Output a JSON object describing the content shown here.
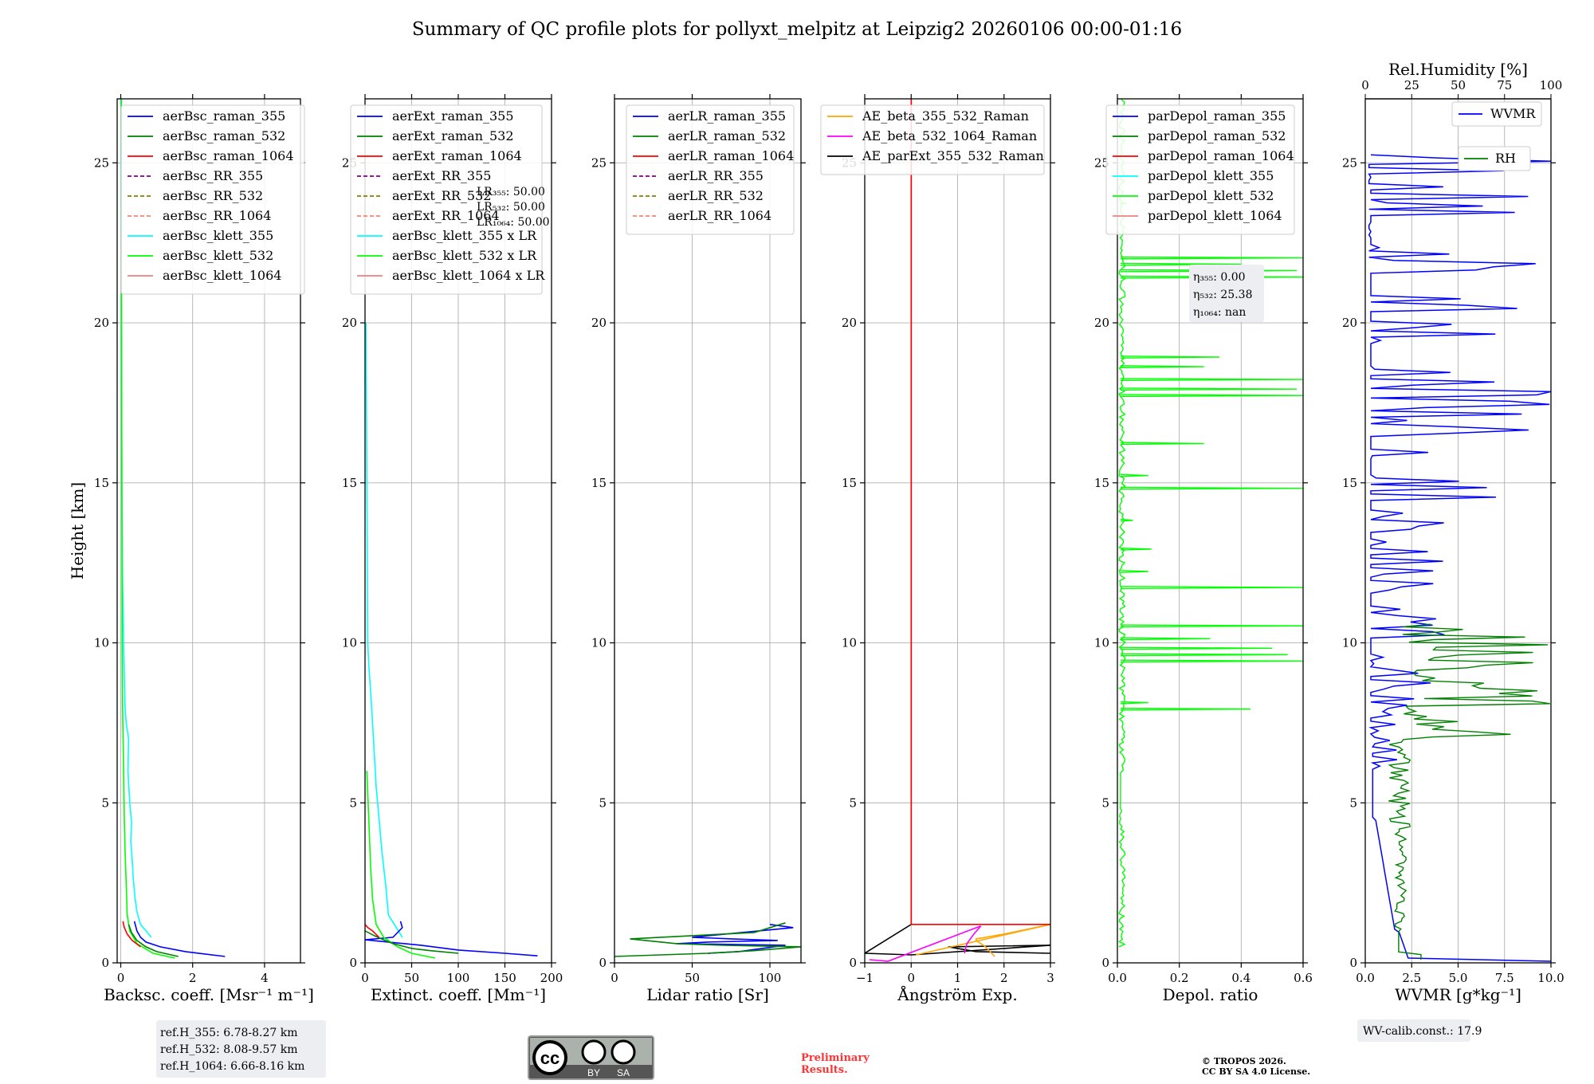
{
  "figure_title": "Summary of QC profile plots for pollyxt_melpitz at Leipzig2 20260106 00:00-01:16",
  "colors": {
    "c355": "#0000ff",
    "c532": "#008000",
    "c1064": "#ff0000",
    "rr355": "#800080",
    "rr532": "#808000",
    "rr1064": "#fa8072",
    "k355": "#00ffff",
    "k532": "#00ff00",
    "k1064": "#f08080",
    "orange": "#ffa500",
    "magenta": "#ff00ff",
    "black": "#000000"
  },
  "chart_data": [
    {
      "id": "bsc",
      "type": "line",
      "xlabel": "Backsc. coeff. [Msr$^{-1}$ m$^{-1}$]",
      "xlabel_text": "Backsc. coeff. [Msr⁻¹ m⁻¹]",
      "ylabel": "Height [km]",
      "xlim": [
        -0.1,
        5
      ],
      "ylim": [
        0,
        27
      ],
      "xticks": [
        0,
        2,
        4
      ],
      "yticks": [
        0,
        5,
        10,
        15,
        20,
        25
      ],
      "legend": [
        {
          "label": "aerBsc_raman_355",
          "color": "c355",
          "dash": false
        },
        {
          "label": "aerBsc_raman_532",
          "color": "c532",
          "dash": false
        },
        {
          "label": "aerBsc_raman_1064",
          "color": "c1064",
          "dash": false
        },
        {
          "label": "aerBsc_RR_355",
          "color": "rr355",
          "dash": true
        },
        {
          "label": "aerBsc_RR_532",
          "color": "rr532",
          "dash": true
        },
        {
          "label": "aerBsc_RR_1064",
          "color": "rr1064",
          "dash": true
        },
        {
          "label": "aerBsc_klett_355",
          "color": "k355",
          "dash": false
        },
        {
          "label": "aerBsc_klett_532",
          "color": "k532",
          "dash": false
        },
        {
          "label": "aerBsc_klett_1064",
          "color": "k1064",
          "dash": false
        }
      ],
      "series": [
        {
          "name": "aerBsc_klett_355",
          "color": "k355",
          "x": [
            0.85,
            0.55,
            0.45,
            0.4,
            0.35,
            0.32,
            0.28,
            0.3,
            0.25,
            0.2,
            0.22,
            0.15,
            0.12,
            0.1,
            0.08,
            0.05,
            0.03,
            0.02,
            0.01,
            0.02
          ],
          "y": [
            0.8,
            1.2,
            1.6,
            2,
            2.6,
            3.2,
            3.8,
            4.4,
            5,
            6,
            7,
            7.5,
            8,
            9,
            10,
            12,
            15,
            20,
            25,
            27
          ]
        },
        {
          "name": "aerBsc_raman_355",
          "color": "c355",
          "x": [
            2.9,
            1.8,
            1.1,
            0.7,
            0.55,
            0.45,
            0.38
          ],
          "y": [
            0.2,
            0.35,
            0.5,
            0.65,
            0.8,
            1.0,
            1.3
          ]
        },
        {
          "name": "aerBsc_klett_532",
          "color": "k532",
          "x": [
            1.5,
            0.9,
            0.45,
            0.25,
            0.18,
            0.15,
            0.12,
            0.1,
            0.08,
            0.05,
            0.04,
            0.03,
            0.02,
            0.01
          ],
          "y": [
            0.15,
            0.3,
            0.6,
            1.0,
            1.5,
            2.5,
            3.5,
            4.5,
            6,
            8,
            10,
            15,
            20,
            27
          ]
        },
        {
          "name": "aerBsc_raman_532",
          "color": "c532",
          "x": [
            1.6,
            1.0,
            0.7,
            0.45,
            0.3,
            0.22
          ],
          "y": [
            0.2,
            0.35,
            0.5,
            0.7,
            0.95,
            1.2
          ]
        },
        {
          "name": "aerBsc_raman_1064",
          "color": "c1064",
          "x": [
            0.55,
            0.32,
            0.18,
            0.1,
            0.06
          ],
          "y": [
            0.5,
            0.7,
            0.9,
            1.1,
            1.3
          ]
        }
      ],
      "annotation": [
        "ref.H_355: 6.78-8.27 km",
        "ref.H_532: 8.08-9.57 km",
        "ref.H_1064: 6.66-8.16 km"
      ]
    },
    {
      "id": "ext",
      "type": "line",
      "xlabel_text": "Extinct. coeff. [Mm⁻¹]",
      "xlim": [
        0,
        200
      ],
      "ylim": [
        0,
        27
      ],
      "xticks": [
        0,
        50,
        100,
        150,
        200
      ],
      "yticks": [
        0,
        5,
        10,
        15,
        20,
        25
      ],
      "legend": [
        {
          "label": "aerExt_raman_355",
          "color": "c355",
          "dash": false
        },
        {
          "label": "aerExt_raman_532",
          "color": "c532",
          "dash": false
        },
        {
          "label": "aerExt_raman_1064",
          "color": "c1064",
          "dash": false
        },
        {
          "label": "aerExt_RR_355",
          "color": "rr355",
          "dash": true
        },
        {
          "label": "aerExt_RR_532",
          "color": "rr532",
          "dash": true
        },
        {
          "label": "aerExt_RR_1064",
          "color": "rr1064",
          "dash": true
        },
        {
          "label": "aerBsc_klett_355 x LR",
          "color": "k355",
          "dash": false
        },
        {
          "label": "aerBsc_klett_532 x LR",
          "color": "k532",
          "dash": false
        },
        {
          "label": "aerBsc_klett_1064 x LR",
          "color": "k1064",
          "dash": false
        }
      ],
      "lr_text": [
        "LR₃₅₅: 50.00",
        "LR₅₃₂: 50.00",
        "LR₁₀₆₄: 50.00"
      ],
      "series": [
        {
          "name": "aerBsc_klett_355 x LR",
          "color": "k355",
          "x": [
            40,
            25,
            22,
            18,
            15,
            12,
            10,
            8,
            6,
            4,
            3,
            2,
            1
          ],
          "y": [
            0.8,
            1.5,
            2.5,
            3.5,
            4.5,
            5.5,
            6.5,
            7.5,
            8.5,
            9.3,
            10,
            15,
            20
          ]
        },
        {
          "name": "aerExt_raman_355",
          "color": "c355",
          "x": [
            185,
            150,
            100,
            60,
            25,
            0,
            30,
            40,
            38
          ],
          "y": [
            0.22,
            0.3,
            0.4,
            0.55,
            0.65,
            0.72,
            0.8,
            1.1,
            1.3
          ]
        },
        {
          "name": "aerBsc_klett_532 x LR",
          "color": "k532",
          "x": [
            75,
            50,
            35,
            20,
            12,
            8,
            6,
            4,
            2
          ],
          "y": [
            0.15,
            0.3,
            0.5,
            0.8,
            1.2,
            2,
            3,
            4.5,
            6
          ]
        },
        {
          "name": "aerExt_raman_532",
          "color": "c532",
          "x": [
            100,
            70,
            50,
            30,
            20,
            10,
            0
          ],
          "y": [
            0.3,
            0.38,
            0.45,
            0.6,
            0.72,
            0.85,
            1.0
          ]
        },
        {
          "name": "aerExt_raman_1064",
          "color": "c1064",
          "x": [
            15,
            8,
            3,
            0
          ],
          "y": [
            0.8,
            1.0,
            1.1,
            1.2
          ]
        }
      ]
    },
    {
      "id": "lr",
      "type": "line",
      "xlabel_text": "Lidar ratio [Sr]",
      "xlim": [
        0,
        120
      ],
      "ylim": [
        0,
        27
      ],
      "xticks": [
        0,
        50,
        100
      ],
      "yticks": [
        0,
        5,
        10,
        15,
        20,
        25
      ],
      "legend": [
        {
          "label": "aerLR_raman_355",
          "color": "c355",
          "dash": false
        },
        {
          "label": "aerLR_raman_532",
          "color": "c532",
          "dash": false
        },
        {
          "label": "aerLR_raman_1064",
          "color": "c1064",
          "dash": false
        },
        {
          "label": "aerLR_RR_355",
          "color": "rr355",
          "dash": true
        },
        {
          "label": "aerLR_RR_532",
          "color": "rr532",
          "dash": true
        },
        {
          "label": "aerLR_RR_1064",
          "color": "rr1064",
          "dash": true
        }
      ],
      "series": [
        {
          "name": "aerLR_raman_355",
          "color": "c355",
          "x": [
            60,
            80,
            110,
            40,
            60,
            105,
            75,
            50,
            115,
            100
          ],
          "y": [
            0.3,
            0.35,
            0.55,
            0.6,
            0.65,
            0.7,
            0.75,
            0.8,
            1.1,
            1.2
          ]
        },
        {
          "name": "aerLR_raman_532",
          "color": "c532",
          "x": [
            0,
            60,
            90,
            120,
            70,
            40,
            10,
            50,
            90,
            110
          ],
          "y": [
            0.2,
            0.3,
            0.38,
            0.5,
            0.55,
            0.6,
            0.75,
            0.85,
            0.95,
            1.25
          ]
        }
      ]
    },
    {
      "id": "ae",
      "type": "line",
      "xlabel_text": "Ångström Exp.",
      "xlim": [
        -1,
        3
      ],
      "ylim": [
        0,
        27
      ],
      "xticks": [
        -1,
        0,
        1,
        2,
        3
      ],
      "yticks": [
        0,
        5,
        10,
        15,
        20,
        25
      ],
      "legend": [
        {
          "label": "AE_beta_355_532_Raman",
          "color": "orange",
          "dash": false
        },
        {
          "label": "AE_beta_532_1064_Raman",
          "color": "magenta",
          "dash": false
        },
        {
          "label": "AE_parExt_355_532_Raman",
          "color": "black",
          "dash": false
        }
      ],
      "series": [
        {
          "name": "AE_parExt_355_532_Raman",
          "color": "black",
          "x": [
            3,
            1.4,
            0.8,
            3,
            0,
            -1,
            0,
            0
          ],
          "y": [
            0.3,
            0.35,
            0.5,
            0.55,
            0.25,
            0.3,
            1.2,
            27
          ]
        },
        {
          "name": "AE_beta_355_532_Raman",
          "color": "orange",
          "x": [
            1.8,
            1.6,
            1.4,
            1.4,
            2,
            3,
            0.1
          ],
          "y": [
            0.2,
            0.5,
            0.7,
            0.75,
            0.9,
            1.2,
            0.25
          ]
        },
        {
          "name": "AE_beta_532_1064_Raman",
          "color": "magenta",
          "x": [
            1.15,
            1.2,
            1.35,
            1.5,
            -0.5,
            -0.9
          ],
          "y": [
            0.3,
            0.6,
            0.9,
            1.15,
            0.05,
            0.1
          ]
        },
        {
          "name": "AE_ref",
          "color": "c1064",
          "x": [
            0,
            0,
            3
          ],
          "y": [
            27,
            1.2,
            1.2
          ]
        }
      ]
    },
    {
      "id": "dep",
      "type": "line",
      "xlabel_text": "Depol. ratio",
      "xlim": [
        0,
        0.6
      ],
      "ylim": [
        0,
        27
      ],
      "xticks": [
        0.0,
        0.2,
        0.4,
        0.6
      ],
      "yticks": [
        0,
        5,
        10,
        15,
        20,
        25
      ],
      "legend": [
        {
          "label": "parDepol_raman_355",
          "color": "c355",
          "dash": false
        },
        {
          "label": "parDepol_raman_532",
          "color": "c532",
          "dash": false
        },
        {
          "label": "parDepol_raman_1064",
          "color": "c1064",
          "dash": false
        },
        {
          "label": "parDepol_klett_355",
          "color": "k355",
          "dash": false
        },
        {
          "label": "parDepol_klett_532",
          "color": "k532",
          "dash": false
        },
        {
          "label": "parDepol_klett_1064",
          "color": "k1064",
          "dash": false
        }
      ],
      "eta_text": [
        "η₃₅₅: 0.00",
        "η₅₃₂: 25.38",
        "η₁₀₆₄: nan"
      ],
      "spikes": [
        [
          7.9,
          0.43
        ],
        [
          8.1,
          0.1
        ],
        [
          9.4,
          0.6
        ],
        [
          9.6,
          0.55
        ],
        [
          9.8,
          0.5
        ],
        [
          10.1,
          0.3
        ],
        [
          10.5,
          0.6
        ],
        [
          11.7,
          0.6
        ],
        [
          12.2,
          0.1
        ],
        [
          12.9,
          0.11
        ],
        [
          13.8,
          0.05
        ],
        [
          14.8,
          0.6
        ],
        [
          15.2,
          0.1
        ],
        [
          16.2,
          0.28
        ],
        [
          17.7,
          0.6
        ],
        [
          17.9,
          0.58
        ],
        [
          18.2,
          0.6
        ],
        [
          18.6,
          0.28
        ],
        [
          18.9,
          0.33
        ],
        [
          21.4,
          0.6
        ],
        [
          21.6,
          0.58
        ],
        [
          21.8,
          0.4
        ],
        [
          22.0,
          0.6
        ],
        [
          23.7,
          0.03
        ]
      ]
    },
    {
      "id": "wv",
      "type": "line",
      "xlabel_text": "WVMR [g*kg⁻¹]",
      "top_label": "Rel.Humidity [%]",
      "xlim": [
        0,
        10
      ],
      "ylim": [
        0,
        27
      ],
      "xticks": [
        "0.0",
        "2.5",
        "5.0",
        "7.5",
        "10.0"
      ],
      "top_ticks": [
        "0",
        "25",
        "50",
        "75",
        "100"
      ],
      "yticks": [
        0,
        5,
        10,
        15,
        20,
        25
      ],
      "legend_wvmr": "WVMR",
      "legend_rh": "RH",
      "calib_text": "WV-calib.const.: 17.9"
    }
  ],
  "footer": {
    "cc_by": "BY",
    "cc_sa": "SA",
    "cc_mark": "cc",
    "preliminary": "Preliminary Results.",
    "copyright_line1": "© TROPOS 2026.",
    "copyright_line2": "CC BY SA 4.0 License."
  }
}
